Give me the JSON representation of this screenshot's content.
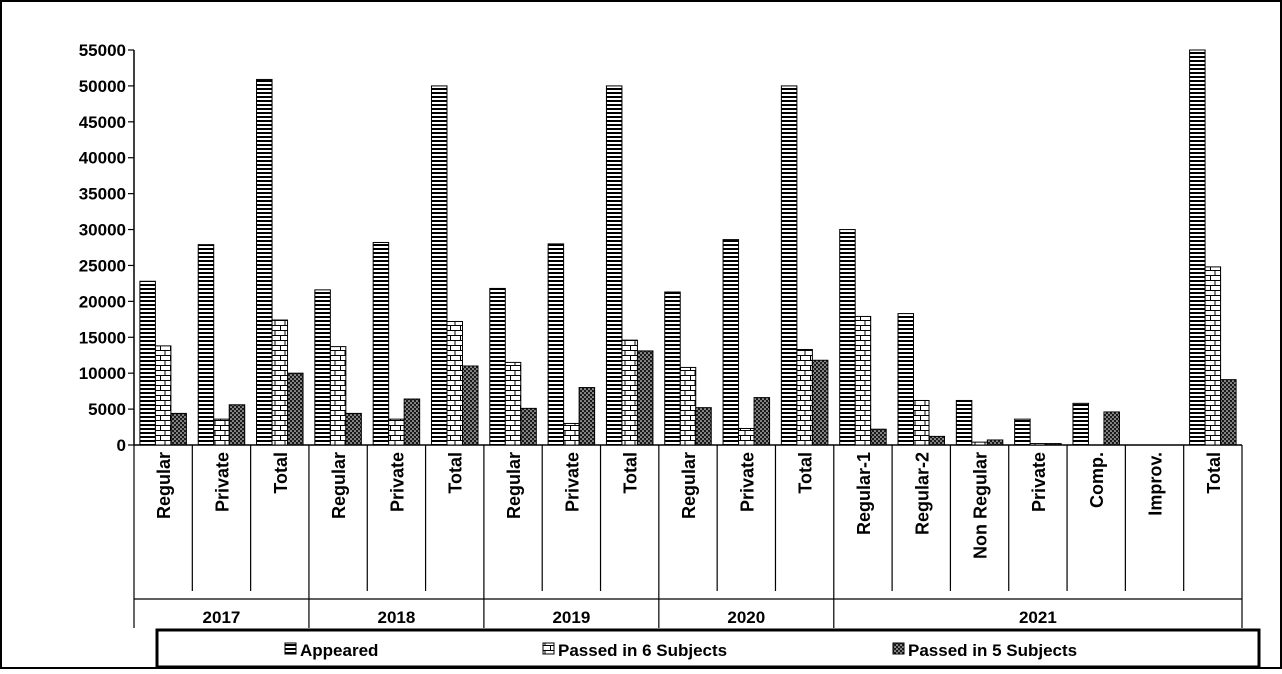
{
  "chart_data": {
    "type": "bar",
    "ylim": [
      0,
      55000
    ],
    "yticks": [
      0,
      5000,
      10000,
      15000,
      20000,
      25000,
      30000,
      35000,
      40000,
      45000,
      50000,
      55000
    ],
    "ytick_labels": [
      "0",
      "5000",
      "10000",
      "15000",
      "20000",
      "25000",
      "30000",
      "35000",
      "40000",
      "45000",
      "50000",
      "55000"
    ],
    "grid": false,
    "legend_position": "bottom",
    "categories": [
      "Regular",
      "Private",
      "Total",
      "Regular",
      "Private",
      "Total",
      "Regular",
      "Private",
      "Total",
      "Regular",
      "Private",
      "Total",
      "Regular-1",
      "Regular-2",
      "Non Regular",
      "Private",
      "Comp.",
      "Improv.",
      "Total"
    ],
    "groups": [
      {
        "label": "2017",
        "count": 3
      },
      {
        "label": "2018",
        "count": 3
      },
      {
        "label": "2019",
        "count": 3
      },
      {
        "label": "2020",
        "count": 3
      },
      {
        "label": "2021",
        "count": 7
      }
    ],
    "series": [
      {
        "name": "Appeared",
        "pattern": "horizontal-stripes",
        "values": [
          22800,
          27900,
          50900,
          21600,
          28200,
          50000,
          21800,
          28000,
          50000,
          21300,
          28600,
          50000,
          30000,
          18300,
          6200,
          3600,
          5800,
          0,
          55000
        ]
      },
      {
        "name": "Passed in 6 Subjects",
        "pattern": "brick",
        "values": [
          13800,
          3600,
          17400,
          13700,
          3600,
          17200,
          11500,
          3000,
          14600,
          10800,
          2300,
          13300,
          17900,
          6200,
          400,
          200,
          0,
          0,
          24800
        ]
      },
      {
        "name": "Passed in 5 Subjects",
        "pattern": "dots",
        "values": [
          4400,
          5600,
          10000,
          4400,
          6400,
          11000,
          5100,
          8000,
          13100,
          5200,
          6600,
          11800,
          2200,
          1200,
          700,
          200,
          4600,
          0,
          9100
        ]
      }
    ]
  }
}
